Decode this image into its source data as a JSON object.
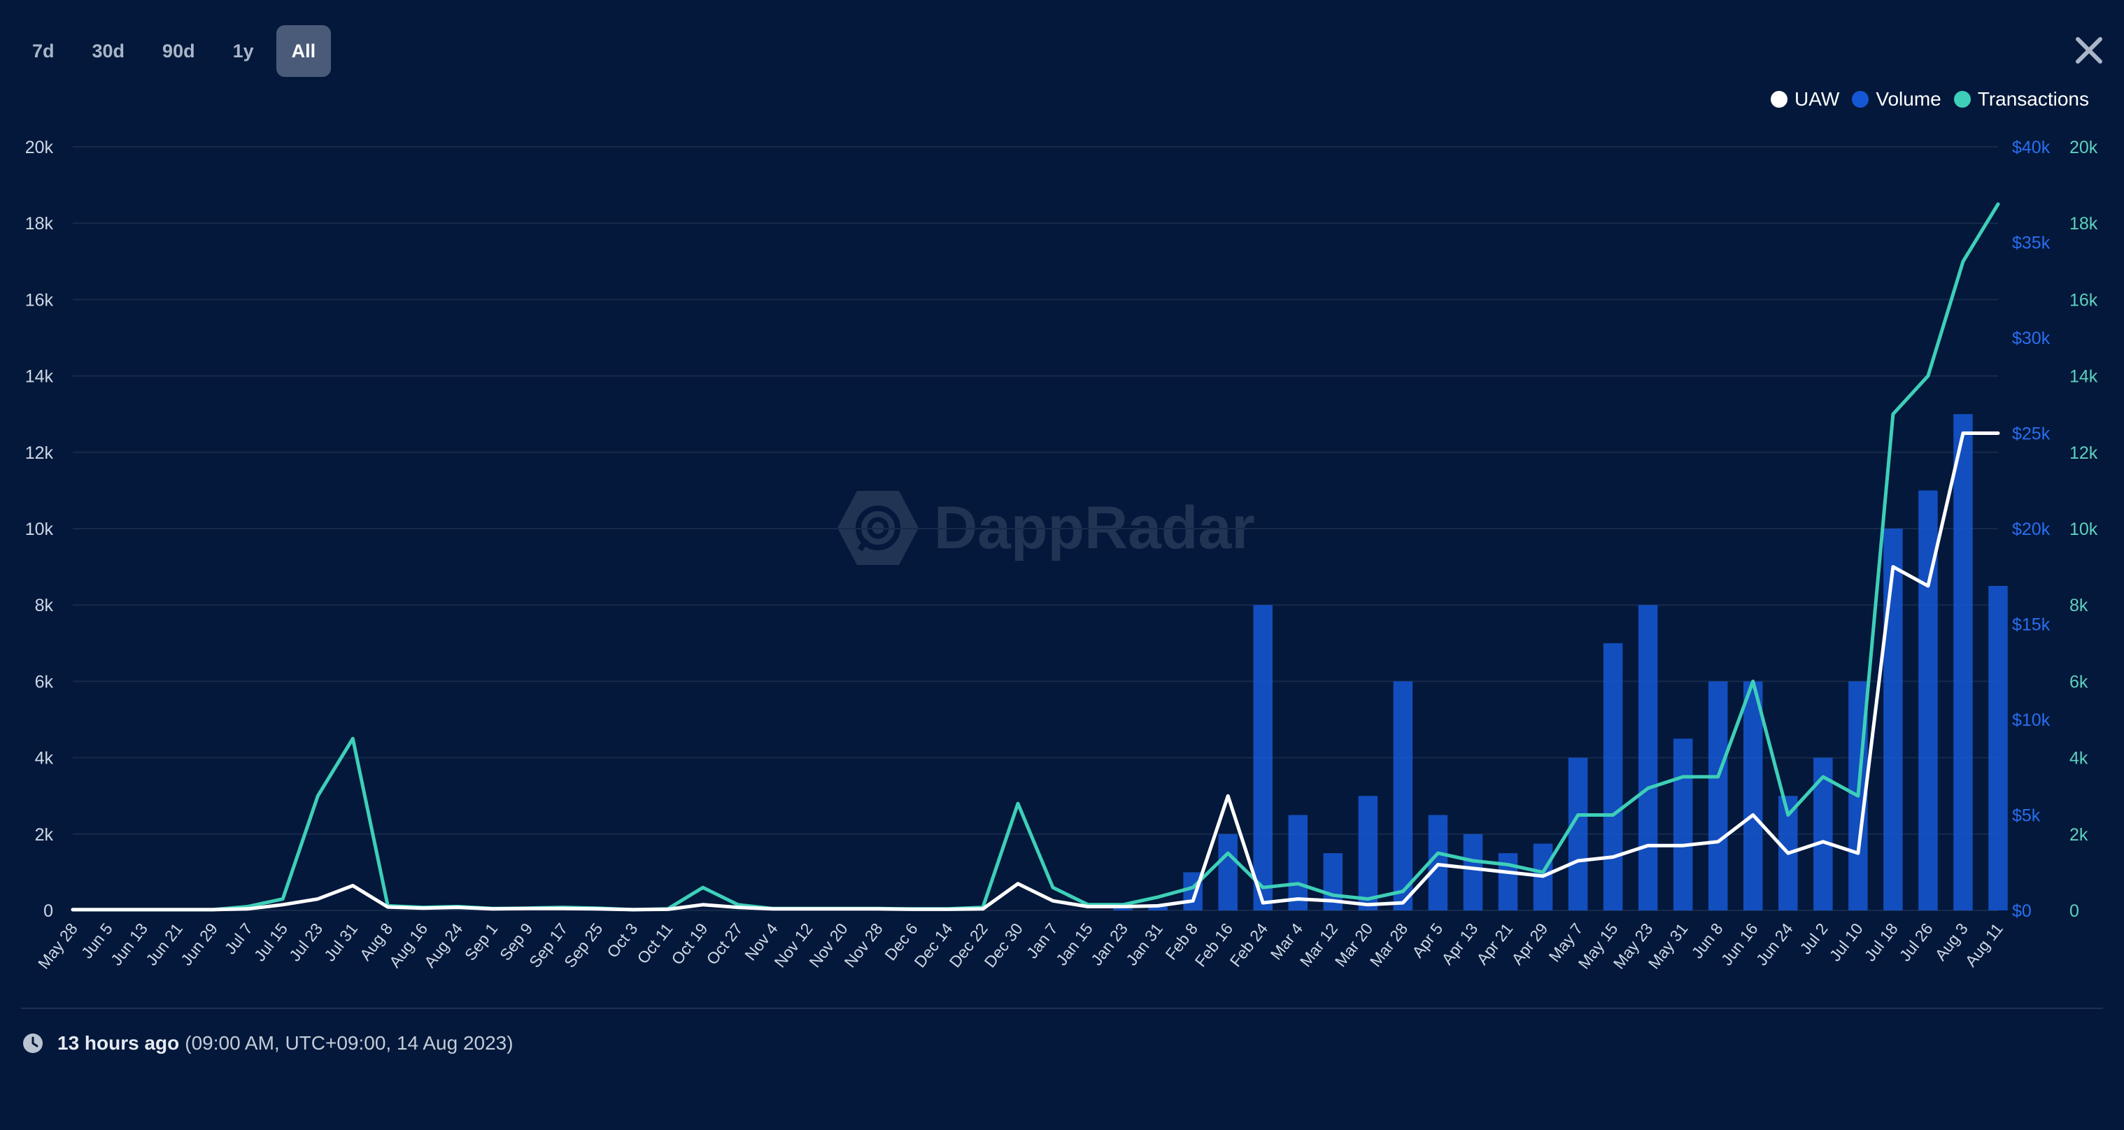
{
  "tabs": [
    {
      "label": "7d",
      "active": false
    },
    {
      "label": "30d",
      "active": false
    },
    {
      "label": "90d",
      "active": false
    },
    {
      "label": "1y",
      "active": false
    },
    {
      "label": "All",
      "active": true
    }
  ],
  "watermark": "DappRadar",
  "footer": {
    "relative_time": "13 hours ago",
    "absolute_time": "(09:00 AM, UTC+09:00, 14 Aug 2023)"
  },
  "colors": {
    "background": "#03183a",
    "uaw": "#ffffff",
    "volume": "#1558d6",
    "transactions": "#3ecfb8",
    "grid": "#182a4c",
    "left_axis_text": "#cfd8e6",
    "volume_axis_text": "#2a6ef0",
    "tx_axis_text": "#5fd0be"
  },
  "icons": {
    "close": "close-x-icon",
    "clock": "clock-icon",
    "watermark_logo": "dappradar-logo-icon"
  },
  "chart_data": {
    "type": "line",
    "x": [
      "May 28",
      "Jun 5",
      "Jun 13",
      "Jun 21",
      "Jun 29",
      "Jul 7",
      "Jul 15",
      "Jul 23",
      "Jul 31",
      "Aug 8",
      "Aug 16",
      "Aug 24",
      "Sep 1",
      "Sep 9",
      "Sep 17",
      "Sep 25",
      "Oct 3",
      "Oct 11",
      "Oct 19",
      "Oct 27",
      "Nov 4",
      "Nov 12",
      "Nov 20",
      "Nov 28",
      "Dec 6",
      "Dec 14",
      "Dec 22",
      "Dec 30",
      "Jan 7",
      "Jan 15",
      "Jan 23",
      "Jan 31",
      "Feb 8",
      "Feb 16",
      "Feb 24",
      "Mar 4",
      "Mar 12",
      "Mar 20",
      "Mar 28",
      "Apr 5",
      "Apr 13",
      "Apr 21",
      "Apr 29",
      "May 7",
      "May 15",
      "May 23",
      "May 31",
      "Jun 8",
      "Jun 16",
      "Jun 24",
      "Jul 2",
      "Jul 10",
      "Jul 18",
      "Jul 26",
      "Aug 3",
      "Aug 11"
    ],
    "legend": [
      "UAW",
      "Volume",
      "Transactions"
    ],
    "legend_position": "top-right",
    "grid": true,
    "axes": {
      "left": {
        "ticks": [
          "0",
          "2k",
          "4k",
          "6k",
          "8k",
          "10k",
          "12k",
          "14k",
          "16k",
          "18k",
          "20k"
        ],
        "range": [
          0,
          20000
        ]
      },
      "right_volume": {
        "ticks": [
          "$0",
          "$5k",
          "$10k",
          "$15k",
          "$20k",
          "$25k",
          "$30k",
          "$35k",
          "$40k"
        ],
        "range": [
          0,
          40000
        ]
      },
      "right_transactions": {
        "ticks": [
          "0",
          "2k",
          "4k",
          "6k",
          "8k",
          "10k",
          "12k",
          "14k",
          "16k",
          "18k",
          "20k"
        ],
        "range": [
          0,
          20000
        ]
      }
    },
    "series": [
      {
        "name": "UAW",
        "type": "line",
        "axis": "left",
        "values": [
          20,
          20,
          20,
          20,
          20,
          40,
          150,
          300,
          650,
          90,
          60,
          80,
          40,
          50,
          50,
          40,
          20,
          30,
          150,
          80,
          40,
          40,
          40,
          40,
          30,
          30,
          40,
          700,
          250,
          100,
          100,
          120,
          250,
          3000,
          200,
          300,
          250,
          150,
          200,
          1200,
          1100,
          1000,
          900,
          1300,
          1400,
          1700,
          1700,
          1800,
          2500,
          1500,
          1800,
          1500,
          9000,
          8500,
          12500,
          12500
        ]
      },
      {
        "name": "Transactions",
        "type": "line",
        "axis": "right_transactions",
        "values": [
          20,
          20,
          20,
          20,
          20,
          100,
          300,
          3000,
          4500,
          120,
          80,
          100,
          50,
          60,
          80,
          60,
          20,
          40,
          600,
          150,
          50,
          50,
          50,
          50,
          40,
          40,
          80,
          2800,
          600,
          150,
          150,
          350,
          600,
          1500,
          600,
          700,
          400,
          300,
          500,
          1500,
          1300,
          1200,
          1000,
          2500,
          2500,
          3200,
          3500,
          3500,
          6000,
          2500,
          3500,
          3000,
          13000,
          14000,
          17000,
          18500
        ]
      },
      {
        "name": "Volume",
        "type": "bar",
        "axis": "right_volume",
        "values": [
          0,
          0,
          0,
          0,
          0,
          0,
          0,
          0,
          0,
          0,
          0,
          0,
          0,
          0,
          0,
          0,
          0,
          0,
          0,
          0,
          0,
          0,
          0,
          0,
          0,
          0,
          0,
          0,
          0,
          0,
          100,
          200,
          2000,
          4000,
          16000,
          5000,
          3000,
          6000,
          12000,
          5000,
          4000,
          3000,
          3500,
          8000,
          14000,
          16000,
          9000,
          12000,
          12000,
          6000,
          8000,
          12000,
          20000,
          22000,
          26000,
          17000
        ]
      }
    ]
  }
}
